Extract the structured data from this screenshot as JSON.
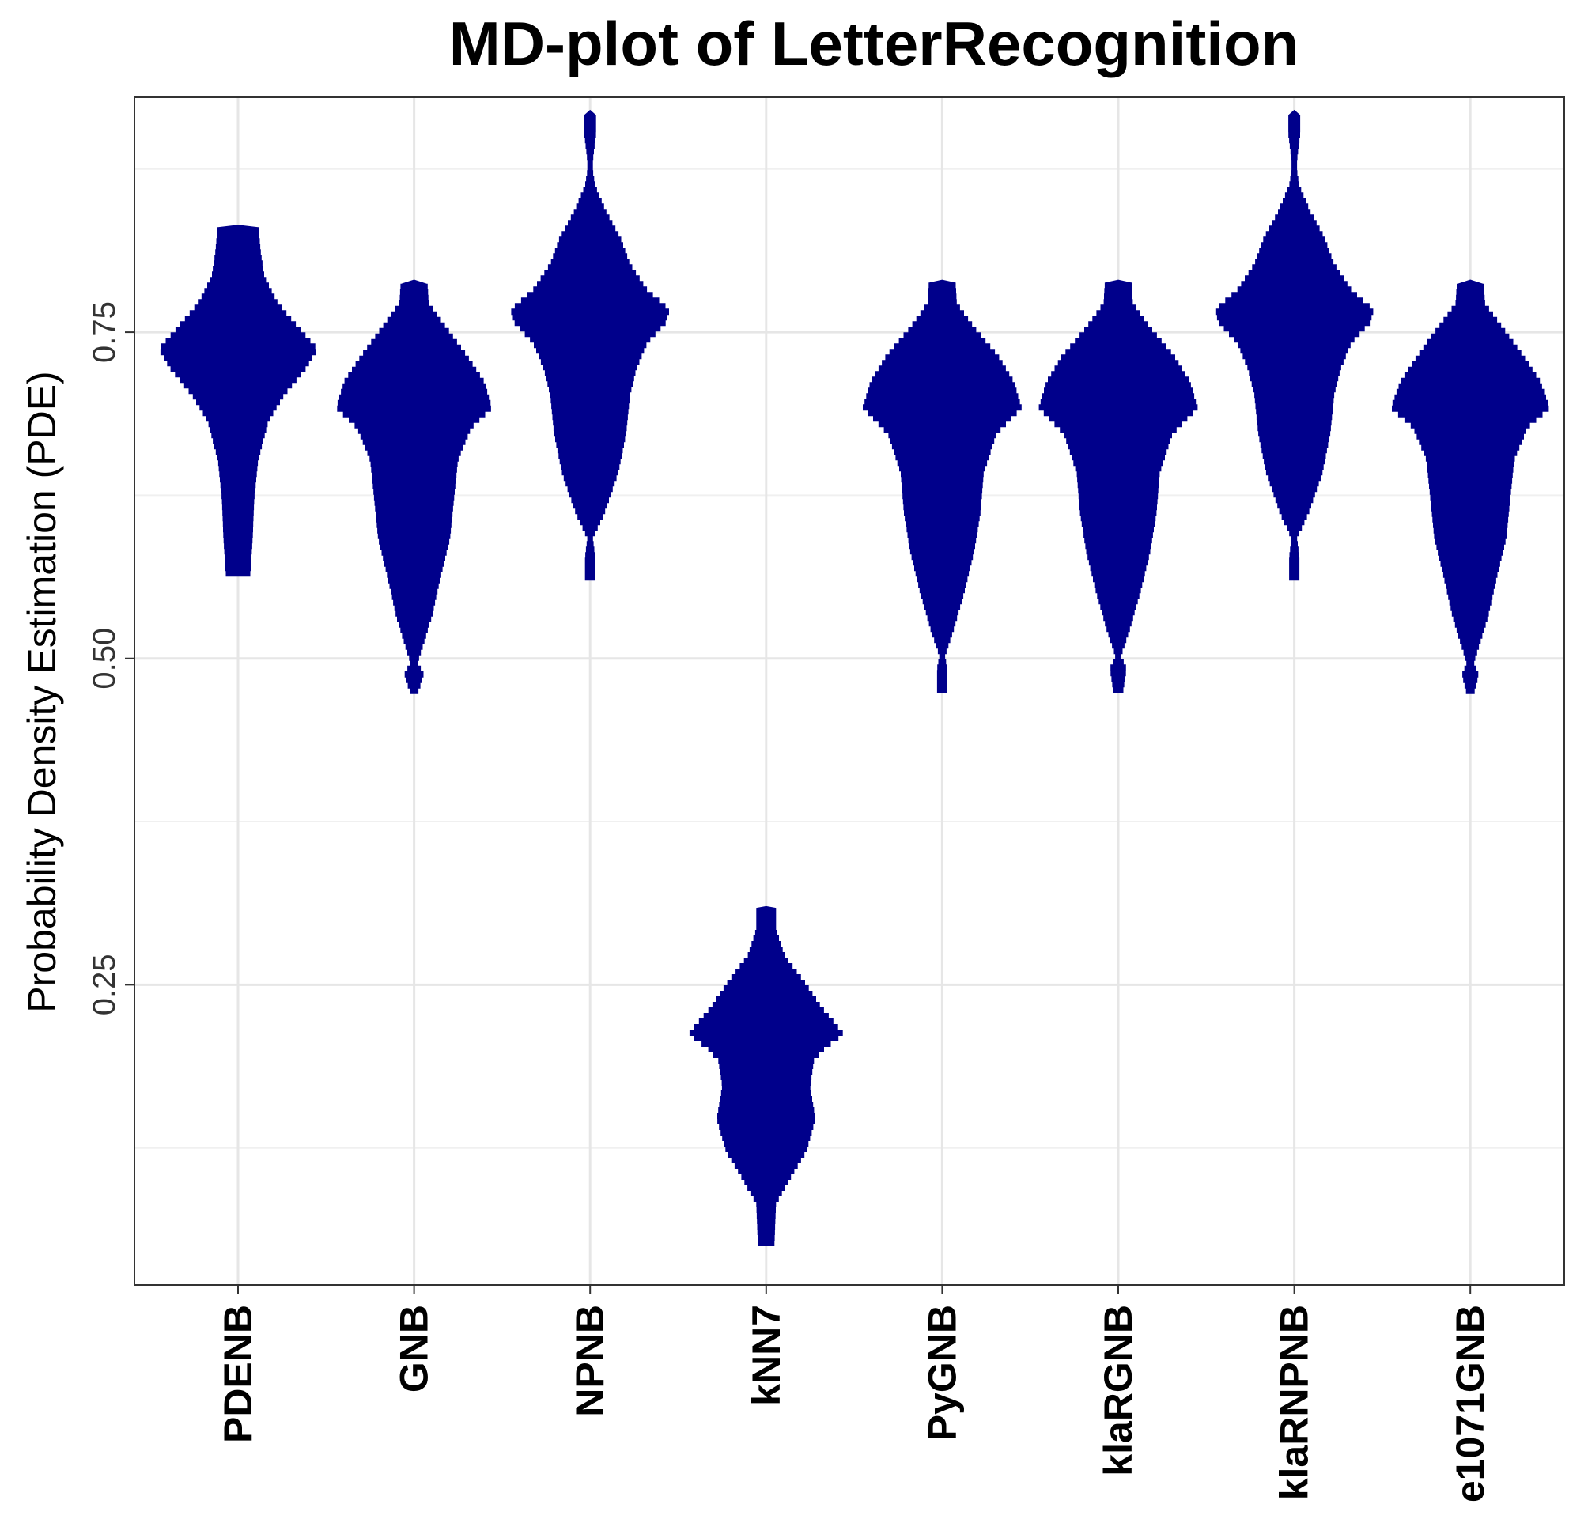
{
  "chart_data": {
    "type": "violin",
    "title": "MD-plot of LetterRecognition",
    "xlabel": "",
    "ylabel": "Probability Density Estimation (PDE)",
    "ylim": [
      0.02,
      0.93
    ],
    "y_ticks": [
      0.25,
      0.5,
      0.75
    ],
    "y_tick_labels": [
      "0.25",
      "0.50",
      "0.75"
    ],
    "y_minor_ticks": [
      0.125,
      0.375,
      0.625,
      0.875
    ],
    "grid": true,
    "fill_color": "#00008B",
    "categories": [
      "PDENB",
      "GNB",
      "NPNB",
      "kNN7",
      "PyGNB",
      "klaRGNB",
      "klaRNPNB",
      "e1071GNB"
    ],
    "series": [
      {
        "min": 0.563,
        "max": 0.832,
        "profile": [
          [
            0.563,
            0.15
          ],
          [
            0.59,
            0.18
          ],
          [
            0.62,
            0.2
          ],
          [
            0.65,
            0.25
          ],
          [
            0.68,
            0.38
          ],
          [
            0.7,
            0.58
          ],
          [
            0.72,
            0.85
          ],
          [
            0.735,
            1.0
          ],
          [
            0.75,
            0.78
          ],
          [
            0.77,
            0.5
          ],
          [
            0.79,
            0.33
          ],
          [
            0.81,
            0.28
          ],
          [
            0.832,
            0.25
          ]
        ]
      },
      {
        "min": 0.473,
        "max": 0.79,
        "profile": [
          [
            0.473,
            0.05
          ],
          [
            0.485,
            0.12
          ],
          [
            0.495,
            0.04
          ],
          [
            0.51,
            0.12
          ],
          [
            0.53,
            0.22
          ],
          [
            0.56,
            0.33
          ],
          [
            0.59,
            0.45
          ],
          [
            0.62,
            0.5
          ],
          [
            0.65,
            0.55
          ],
          [
            0.675,
            0.72
          ],
          [
            0.69,
            0.98
          ],
          [
            0.71,
            0.88
          ],
          [
            0.73,
            0.66
          ],
          [
            0.75,
            0.42
          ],
          [
            0.77,
            0.18
          ],
          [
            0.79,
            0.16
          ]
        ]
      },
      {
        "min": 0.56,
        "max": 0.92,
        "profile": [
          [
            0.56,
            0.06
          ],
          [
            0.575,
            0.06
          ],
          [
            0.59,
            0.03
          ],
          [
            0.61,
            0.18
          ],
          [
            0.64,
            0.35
          ],
          [
            0.67,
            0.45
          ],
          [
            0.7,
            0.5
          ],
          [
            0.72,
            0.58
          ],
          [
            0.74,
            0.72
          ],
          [
            0.755,
            0.95
          ],
          [
            0.765,
            1.0
          ],
          [
            0.78,
            0.72
          ],
          [
            0.8,
            0.5
          ],
          [
            0.82,
            0.38
          ],
          [
            0.84,
            0.2
          ],
          [
            0.86,
            0.06
          ],
          [
            0.875,
            0.02
          ],
          [
            0.9,
            0.07
          ],
          [
            0.92,
            0.07
          ]
        ]
      },
      {
        "min": 0.05,
        "max": 0.31,
        "profile": [
          [
            0.05,
            0.1
          ],
          [
            0.08,
            0.12
          ],
          [
            0.1,
            0.3
          ],
          [
            0.12,
            0.5
          ],
          [
            0.145,
            0.62
          ],
          [
            0.17,
            0.55
          ],
          [
            0.19,
            0.6
          ],
          [
            0.2,
            0.75
          ],
          [
            0.21,
            0.98
          ],
          [
            0.23,
            0.7
          ],
          [
            0.25,
            0.48
          ],
          [
            0.27,
            0.23
          ],
          [
            0.29,
            0.12
          ],
          [
            0.31,
            0.12
          ]
        ]
      },
      {
        "min": 0.474,
        "max": 0.79,
        "profile": [
          [
            0.474,
            0.06
          ],
          [
            0.49,
            0.06
          ],
          [
            0.5,
            0.03
          ],
          [
            0.52,
            0.14
          ],
          [
            0.55,
            0.28
          ],
          [
            0.58,
            0.4
          ],
          [
            0.61,
            0.48
          ],
          [
            0.64,
            0.52
          ],
          [
            0.67,
            0.68
          ],
          [
            0.69,
            1.0
          ],
          [
            0.71,
            0.9
          ],
          [
            0.73,
            0.7
          ],
          [
            0.75,
            0.42
          ],
          [
            0.77,
            0.18
          ],
          [
            0.79,
            0.16
          ]
        ]
      },
      {
        "min": 0.474,
        "max": 0.79,
        "profile": [
          [
            0.474,
            0.06
          ],
          [
            0.49,
            0.1
          ],
          [
            0.5,
            0.03
          ],
          [
            0.52,
            0.14
          ],
          [
            0.55,
            0.28
          ],
          [
            0.58,
            0.4
          ],
          [
            0.61,
            0.48
          ],
          [
            0.64,
            0.52
          ],
          [
            0.67,
            0.68
          ],
          [
            0.69,
            1.0
          ],
          [
            0.71,
            0.9
          ],
          [
            0.73,
            0.7
          ],
          [
            0.75,
            0.42
          ],
          [
            0.77,
            0.18
          ],
          [
            0.79,
            0.16
          ]
        ]
      },
      {
        "min": 0.56,
        "max": 0.92,
        "profile": [
          [
            0.56,
            0.06
          ],
          [
            0.575,
            0.06
          ],
          [
            0.59,
            0.03
          ],
          [
            0.61,
            0.18
          ],
          [
            0.64,
            0.35
          ],
          [
            0.67,
            0.45
          ],
          [
            0.7,
            0.5
          ],
          [
            0.72,
            0.58
          ],
          [
            0.74,
            0.72
          ],
          [
            0.755,
            0.95
          ],
          [
            0.765,
            1.0
          ],
          [
            0.78,
            0.72
          ],
          [
            0.8,
            0.5
          ],
          [
            0.82,
            0.38
          ],
          [
            0.84,
            0.2
          ],
          [
            0.86,
            0.06
          ],
          [
            0.875,
            0.02
          ],
          [
            0.9,
            0.07
          ],
          [
            0.92,
            0.07
          ]
        ]
      },
      {
        "min": 0.473,
        "max": 0.79,
        "profile": [
          [
            0.473,
            0.05
          ],
          [
            0.485,
            0.1
          ],
          [
            0.495,
            0.04
          ],
          [
            0.51,
            0.12
          ],
          [
            0.53,
            0.22
          ],
          [
            0.56,
            0.33
          ],
          [
            0.59,
            0.45
          ],
          [
            0.62,
            0.5
          ],
          [
            0.65,
            0.55
          ],
          [
            0.675,
            0.72
          ],
          [
            0.69,
            1.0
          ],
          [
            0.71,
            0.88
          ],
          [
            0.73,
            0.66
          ],
          [
            0.75,
            0.42
          ],
          [
            0.77,
            0.18
          ],
          [
            0.79,
            0.16
          ]
        ]
      }
    ]
  }
}
